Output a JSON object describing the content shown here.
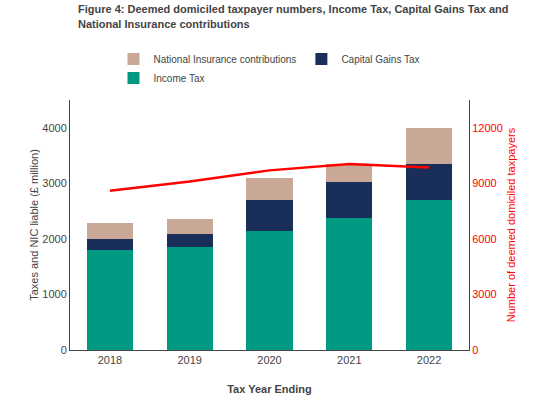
{
  "chart_data": {
    "type": "bar",
    "stacked": true,
    "title": "Figure 4: Deemed domiciled taxpayer numbers, Income Tax, Capital Gains Tax and\nNational Insurance contributions",
    "xlabel": "Tax Year Ending",
    "ylabel": "Taxes and NIC liable (£ million)",
    "y2label": "Number of deemed domiciled taxpayers",
    "categories": [
      "2018",
      "2019",
      "2020",
      "2021",
      "2022"
    ],
    "series": [
      {
        "name": "Income Tax",
        "color": "#009a82",
        "values": [
          1800,
          1850,
          2150,
          2380,
          2700
        ]
      },
      {
        "name": "Capital Gains Tax",
        "color": "#1a2e5a",
        "values": [
          200,
          230,
          550,
          650,
          650
        ]
      },
      {
        "name": "National Insurance contributions",
        "color": "#c9a898",
        "values": [
          280,
          270,
          400,
          310,
          640
        ]
      },
      {
        "type": "line",
        "axis": "y2",
        "color": "#ff0000",
        "values": [
          8600,
          9100,
          9700,
          10050,
          9850
        ]
      }
    ],
    "ylim": [
      0,
      4500
    ],
    "yticks": [
      0,
      1000,
      2000,
      3000,
      4000
    ],
    "y2lim": [
      0,
      13500
    ],
    "y2ticks": [
      0,
      3000,
      6000,
      9000,
      12000
    ],
    "grid": false,
    "legend": "top"
  }
}
